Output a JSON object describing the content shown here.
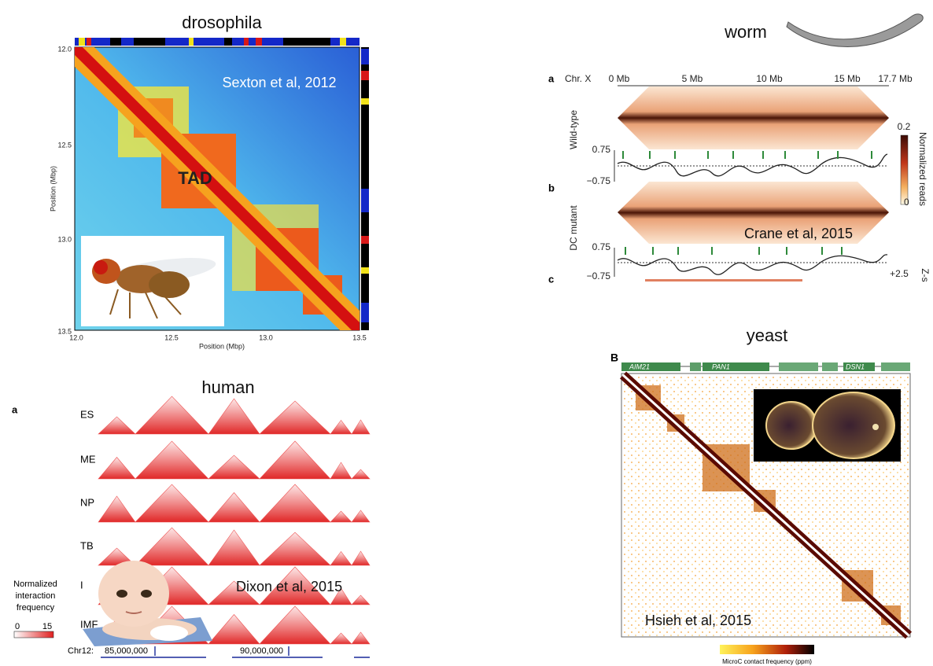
{
  "drosophila": {
    "title": "drosophila",
    "citation": "Sexton et al, 2012",
    "label": "TAD",
    "axis_title": "Position (Mbp)",
    "ticks": [
      "12.0",
      "12.5",
      "13.0",
      "13.5"
    ]
  },
  "worm": {
    "title": "worm",
    "panel_a": "a",
    "panel_b": "b",
    "panel_c": "c",
    "chromosome": "Chr. X",
    "ticks": [
      "0 Mb",
      "5 Mb",
      "10 Mb",
      "15 Mb",
      "17.7 Mb"
    ],
    "track_labels": [
      "Wild-type",
      "DC mutant"
    ],
    "track_max": "0.75",
    "track_min": "−0.75",
    "colorbar_max": "0.2",
    "colorbar_min": "0",
    "colorbar_title": "Normalized reads",
    "zscore_max": "+2.5",
    "zscore_title": "Z-s",
    "citation": "Crane et al, 2015"
  },
  "human": {
    "title": "human",
    "panel": "a",
    "cell_types": [
      "ES",
      "ME",
      "NP",
      "TB",
      "I",
      "IMF"
    ],
    "legend_title": [
      "Normalized",
      "interaction",
      "frequency"
    ],
    "legend_min": "0",
    "legend_max": "15",
    "chromosome": "Chr12:",
    "positions": [
      "85,000,000",
      "90,000,000"
    ],
    "citation": "Dixon et al, 2015"
  },
  "yeast": {
    "title": "yeast",
    "panel": "B",
    "genes": [
      "AIM21",
      "PAN1",
      "DSN1"
    ],
    "citation": "Hsieh et al, 2015",
    "colorbar_title": "MicroC contact frequency (ppm)"
  }
}
